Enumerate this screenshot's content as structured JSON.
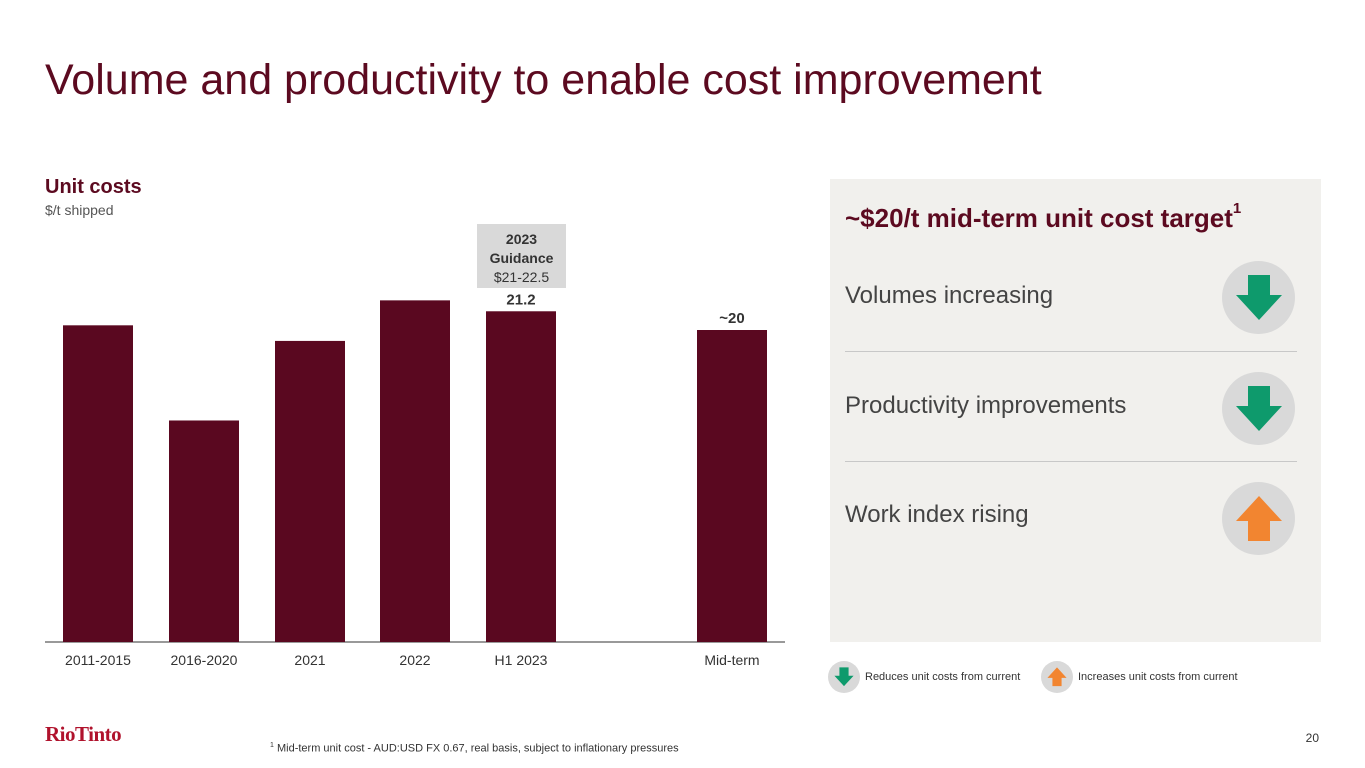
{
  "page": {
    "title": "Volume and productivity to enable cost improvement",
    "page_number": "20",
    "logo": "RioTinto",
    "footnote_mark": "1",
    "footnote": "Mid-term unit cost - AUD:USD FX 0.67, real basis, subject to inflationary pressures"
  },
  "chart_data": {
    "type": "bar",
    "title": "Unit costs",
    "subtitle": "$/t shipped",
    "categories": [
      "2011-2015",
      "2016-2020",
      "2021",
      "2022",
      "H1 2023",
      "Mid-term"
    ],
    "values": [
      20.3,
      14.2,
      19.3,
      21.9,
      21.2,
      20
    ],
    "data_labels": [
      "",
      "",
      "",
      "",
      "21.2",
      "~20"
    ],
    "ylim": [
      0,
      22
    ],
    "xlabel": "",
    "ylabel": "",
    "bar_color": "#5a0820",
    "annotation": {
      "line1": "2023",
      "line2": "Guidance",
      "line3": "$21-22.5"
    }
  },
  "panel": {
    "title": "~$20/t mid-term unit cost target",
    "title_sup": "1",
    "rows": [
      {
        "label": "Volumes increasing",
        "icon": "arrow-down-icon"
      },
      {
        "label": "Productivity improvements",
        "icon": "arrow-down-icon"
      },
      {
        "label": "Work index rising",
        "icon": "arrow-up-icon"
      }
    ]
  },
  "legend": {
    "down_label": "Reduces unit costs from current",
    "up_label": "Increases unit costs from current"
  },
  "colors": {
    "brand": "#5c0a20",
    "bar": "#5a0820",
    "down_arrow": "#0e9a6c",
    "up_arrow": "#f28530",
    "panel_bg": "#f1f0ed",
    "logo": "#b0122c"
  }
}
